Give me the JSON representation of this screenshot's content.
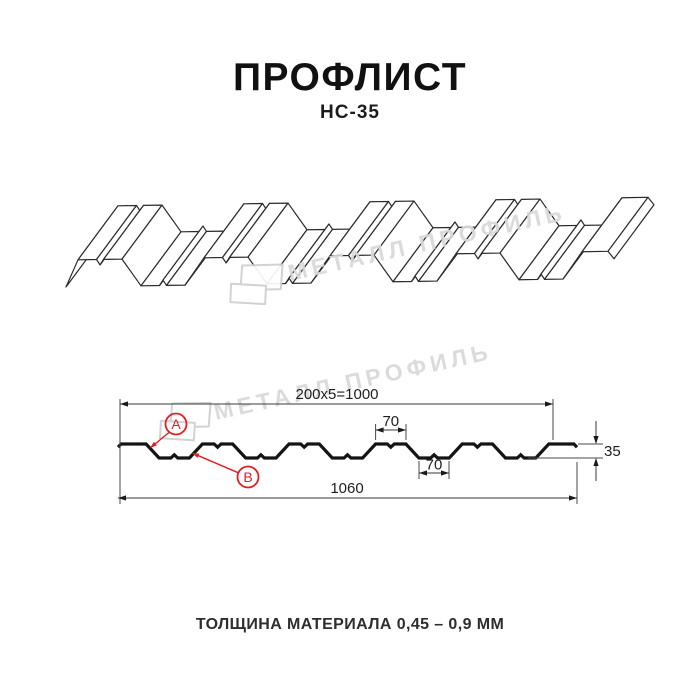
{
  "header": {
    "title": "ПРОФЛИСТ",
    "model": "НС-35"
  },
  "watermark": {
    "text": "МЕТАЛЛ ПРОФИЛЬ",
    "color": "#d8d8d8"
  },
  "cross_section": {
    "dim_top_length": "200x5=1000",
    "dim_flange_width": "70",
    "dim_valley_width": "70",
    "dim_profile_height": "35",
    "dim_total_width": "1060",
    "marker_a": "А",
    "marker_b": "В",
    "accent_color": "#e31e24",
    "line_color": "#141414"
  },
  "footer": {
    "thickness_note": "ТОЛЩИНА МАТЕРИАЛА 0,45 – 0,9 ММ"
  }
}
